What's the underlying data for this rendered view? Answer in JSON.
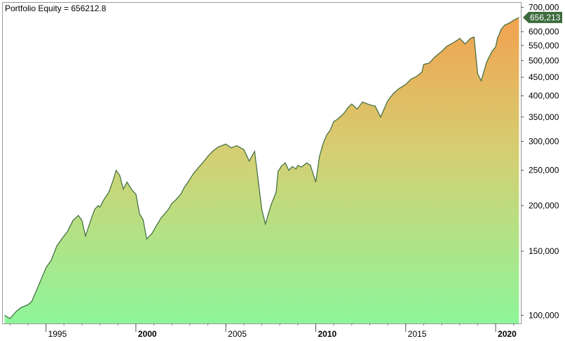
{
  "chart_title": "Portfolio Equity = 656212.8",
  "chart_data": {
    "type": "area",
    "title": "Portfolio Equity = 656212.8",
    "y_scale": "log",
    "ylim": [
      95000,
      720000
    ],
    "xlim": [
      1992.6,
      2021.4
    ],
    "y_ticks": [
      {
        "value": 100000,
        "label": "100,000"
      },
      {
        "value": 150000,
        "label": "150,000"
      },
      {
        "value": 200000,
        "label": "200,000"
      },
      {
        "value": 250000,
        "label": "250,000"
      },
      {
        "value": 300000,
        "label": "300,000"
      },
      {
        "value": 350000,
        "label": "350,000"
      },
      {
        "value": 400000,
        "label": "400,000"
      },
      {
        "value": 450000,
        "label": "450,000"
      },
      {
        "value": 500000,
        "label": "500,000"
      },
      {
        "value": 550000,
        "label": "550,000"
      },
      {
        "value": 600000,
        "label": "600,000"
      },
      {
        "value": 700000,
        "label": "700,000"
      }
    ],
    "x_ticks": [
      {
        "value": 1995,
        "label": "1995",
        "bold": false
      },
      {
        "value": 2000,
        "label": "2000",
        "bold": true
      },
      {
        "value": 2005,
        "label": "2005",
        "bold": false
      },
      {
        "value": 2010,
        "label": "2010",
        "bold": true
      },
      {
        "value": 2015,
        "label": "2015",
        "bold": false
      },
      {
        "value": 2020,
        "label": "2020",
        "bold": true
      }
    ],
    "last_value": 656213,
    "last_value_label": "656,213",
    "series": [
      {
        "x": [
          1992.7,
          1993.0,
          1993.3,
          1993.6,
          1994.0,
          1994.2,
          1994.5,
          1994.8,
          1995.0,
          1995.3,
          1995.6,
          1996.0,
          1996.2,
          1996.5,
          1996.8,
          1997.0,
          1997.2,
          1997.5,
          1997.7,
          1997.9,
          1998.0,
          1998.2,
          1998.5,
          1998.7,
          1998.9,
          1999.1,
          1999.3,
          1999.5,
          1999.8,
          2000.0,
          2000.2,
          2000.4,
          2000.6,
          2000.9,
          2001.1,
          2001.4,
          2001.6,
          2001.8,
          2002.0,
          2002.2,
          2002.5,
          2002.7,
          2002.9,
          2003.2,
          2003.5,
          2003.8,
          2004.0,
          2004.3,
          2004.6,
          2005.0,
          2005.3,
          2005.6,
          2006.0,
          2006.3,
          2006.6,
          2007.0,
          2007.2,
          2007.5,
          2007.8,
          2007.9,
          2008.1,
          2008.3,
          2008.5,
          2008.7,
          2008.9,
          2009.0,
          2009.2,
          2009.5,
          2009.7,
          2010.0,
          2010.2,
          2010.4,
          2010.6,
          2010.8,
          2011.0,
          2011.2,
          2011.4,
          2011.6,
          2011.8,
          2012.0,
          2012.3,
          2012.6,
          2013.0,
          2013.3,
          2013.6,
          2014.0,
          2014.3,
          2014.6,
          2015.0,
          2015.3,
          2015.6,
          2015.9,
          2016.0,
          2016.3,
          2016.6,
          2017.0,
          2017.3,
          2017.6,
          2017.9,
          2018.0,
          2018.3,
          2018.6,
          2018.8,
          2019.0,
          2019.2,
          2019.5,
          2019.8,
          2020.0,
          2020.1,
          2020.2,
          2020.3,
          2020.5,
          2020.8,
          2021.0,
          2021.3
        ],
        "values": [
          100000,
          98000,
          102000,
          105000,
          107000,
          109000,
          118000,
          128000,
          135000,
          142000,
          155000,
          165000,
          170000,
          182000,
          188000,
          182000,
          165000,
          183000,
          195000,
          200000,
          198000,
          207000,
          218000,
          232000,
          250000,
          242000,
          222000,
          232000,
          220000,
          215000,
          190000,
          183000,
          162000,
          168000,
          175000,
          185000,
          190000,
          195000,
          203000,
          207000,
          215000,
          225000,
          232000,
          245000,
          255000,
          265000,
          273000,
          283000,
          290000,
          295000,
          288000,
          292000,
          285000,
          265000,
          282000,
          195000,
          178000,
          200000,
          218000,
          248000,
          257000,
          262000,
          250000,
          256000,
          252000,
          258000,
          255000,
          262000,
          258000,
          232000,
          272000,
          295000,
          312000,
          322000,
          340000,
          345000,
          352000,
          360000,
          372000,
          380000,
          368000,
          385000,
          378000,
          375000,
          350000,
          388000,
          405000,
          418000,
          430000,
          445000,
          452000,
          465000,
          488000,
          492000,
          510000,
          530000,
          548000,
          558000,
          570000,
          575000,
          555000,
          575000,
          580000,
          460000,
          440000,
          495000,
          530000,
          545000,
          575000,
          590000,
          608000,
          625000,
          635000,
          645000,
          656213
        ],
        "line_color": "#3d6b3d",
        "fill_top_color": "#f2a24f",
        "fill_bottom_color": "#8ef59a"
      }
    ],
    "grid": false,
    "legend": "none"
  }
}
